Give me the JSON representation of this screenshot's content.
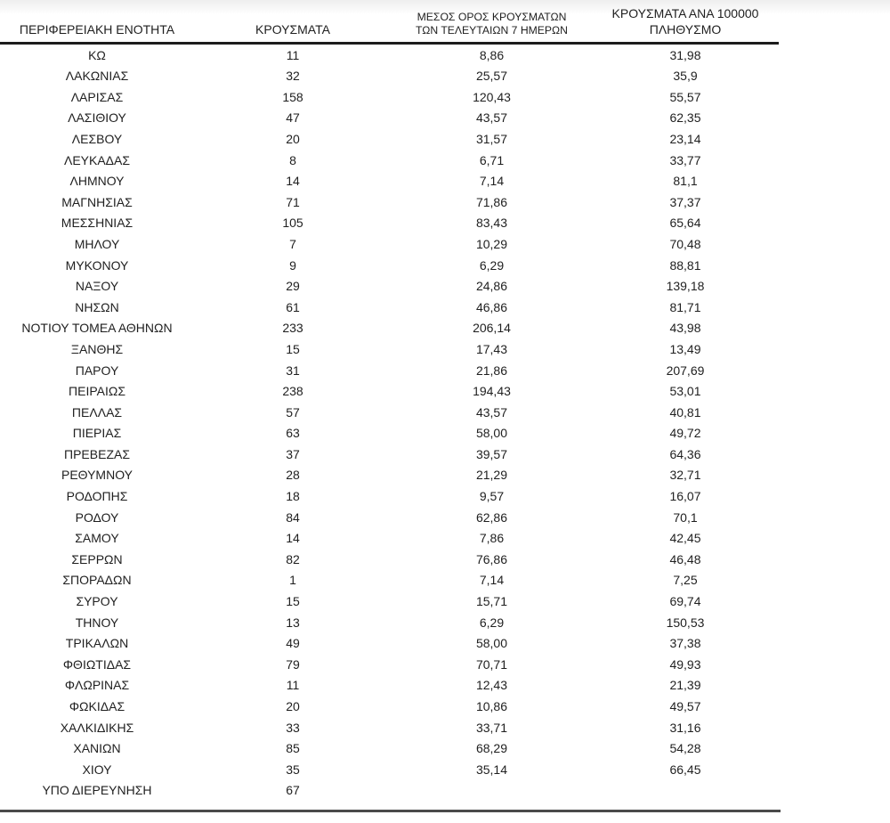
{
  "colors": {
    "text": "#1f1f1f",
    "header_rule": "#1c1c1c",
    "bottom_rule": "#4a4a4a",
    "background": "#ffffff"
  },
  "table": {
    "headers": {
      "region": "ΠΕΡΙΦΕΡΕΙΑΚΗ ΕΝΟΤΗΤΑ",
      "cases": "ΚΡΟΥΣΜΑΤΑ",
      "avg7_line1": "ΜΕΣΟΣ ΟΡΟΣ ΚΡΟΥΣΜΑΤΩΝ",
      "avg7_line2": "ΤΩΝ ΤΕΛΕΥΤΑΙΩΝ 7 ΗΜΕΡΩΝ",
      "per100k_line1": "ΚΡΟΥΣΜΑΤΑ ΑΝΑ 100000",
      "per100k_line2": "ΠΛΗΘΥΣΜΟ"
    },
    "rows": [
      {
        "region": "ΚΩ",
        "cases": "11",
        "avg7": "8,86",
        "per100k": "31,98"
      },
      {
        "region": "ΛΑΚΩΝΙΑΣ",
        "cases": "32",
        "avg7": "25,57",
        "per100k": "35,9"
      },
      {
        "region": "ΛΑΡΙΣΑΣ",
        "cases": "158",
        "avg7": "120,43",
        "per100k": "55,57"
      },
      {
        "region": "ΛΑΣΙΘΙΟΥ",
        "cases": "47",
        "avg7": "43,57",
        "per100k": "62,35"
      },
      {
        "region": "ΛΕΣΒΟΥ",
        "cases": "20",
        "avg7": "31,57",
        "per100k": "23,14"
      },
      {
        "region": "ΛΕΥΚΑΔΑΣ",
        "cases": "8",
        "avg7": "6,71",
        "per100k": "33,77"
      },
      {
        "region": "ΛΗΜΝΟΥ",
        "cases": "14",
        "avg7": "7,14",
        "per100k": "81,1"
      },
      {
        "region": "ΜΑΓΝΗΣΙΑΣ",
        "cases": "71",
        "avg7": "71,86",
        "per100k": "37,37"
      },
      {
        "region": "ΜΕΣΣΗΝΙΑΣ",
        "cases": "105",
        "avg7": "83,43",
        "per100k": "65,64"
      },
      {
        "region": "ΜΗΛΟΥ",
        "cases": "7",
        "avg7": "10,29",
        "per100k": "70,48"
      },
      {
        "region": "ΜΥΚΟΝΟΥ",
        "cases": "9",
        "avg7": "6,29",
        "per100k": "88,81"
      },
      {
        "region": "ΝΑΞΟΥ",
        "cases": "29",
        "avg7": "24,86",
        "per100k": "139,18"
      },
      {
        "region": "ΝΗΣΩΝ",
        "cases": "61",
        "avg7": "46,86",
        "per100k": "81,71"
      },
      {
        "region": "ΝΟΤΙΟΥ ΤΟΜΕΑ ΑΘΗΝΩΝ",
        "cases": "233",
        "avg7": "206,14",
        "per100k": "43,98"
      },
      {
        "region": "ΞΑΝΘΗΣ",
        "cases": "15",
        "avg7": "17,43",
        "per100k": "13,49"
      },
      {
        "region": "ΠΑΡΟΥ",
        "cases": "31",
        "avg7": "21,86",
        "per100k": "207,69"
      },
      {
        "region": "ΠΕΙΡΑΙΩΣ",
        "cases": "238",
        "avg7": "194,43",
        "per100k": "53,01"
      },
      {
        "region": "ΠΕΛΛΑΣ",
        "cases": "57",
        "avg7": "43,57",
        "per100k": "40,81"
      },
      {
        "region": "ΠΙΕΡΙΑΣ",
        "cases": "63",
        "avg7": "58,00",
        "per100k": "49,72"
      },
      {
        "region": "ΠΡΕΒΕΖΑΣ",
        "cases": "37",
        "avg7": "39,57",
        "per100k": "64,36"
      },
      {
        "region": "ΡΕΘΥΜΝΟΥ",
        "cases": "28",
        "avg7": "21,29",
        "per100k": "32,71"
      },
      {
        "region": "ΡΟΔΟΠΗΣ",
        "cases": "18",
        "avg7": "9,57",
        "per100k": "16,07"
      },
      {
        "region": "ΡΟΔΟΥ",
        "cases": "84",
        "avg7": "62,86",
        "per100k": "70,1"
      },
      {
        "region": "ΣΑΜΟΥ",
        "cases": "14",
        "avg7": "7,86",
        "per100k": "42,45"
      },
      {
        "region": "ΣΕΡΡΩΝ",
        "cases": "82",
        "avg7": "76,86",
        "per100k": "46,48"
      },
      {
        "region": "ΣΠΟΡΑΔΩΝ",
        "cases": "1",
        "avg7": "7,14",
        "per100k": "7,25"
      },
      {
        "region": "ΣΥΡΟΥ",
        "cases": "15",
        "avg7": "15,71",
        "per100k": "69,74"
      },
      {
        "region": "ΤΗΝΟΥ",
        "cases": "13",
        "avg7": "6,29",
        "per100k": "150,53"
      },
      {
        "region": "ΤΡΙΚΑΛΩΝ",
        "cases": "49",
        "avg7": "58,00",
        "per100k": "37,38"
      },
      {
        "region": "ΦΘΙΩΤΙΔΑΣ",
        "cases": "79",
        "avg7": "70,71",
        "per100k": "49,93"
      },
      {
        "region": "ΦΛΩΡΙΝΑΣ",
        "cases": "11",
        "avg7": "12,43",
        "per100k": "21,39"
      },
      {
        "region": "ΦΩΚΙΔΑΣ",
        "cases": "20",
        "avg7": "10,86",
        "per100k": "49,57"
      },
      {
        "region": "ΧΑΛΚΙΔΙΚΗΣ",
        "cases": "33",
        "avg7": "33,71",
        "per100k": "31,16"
      },
      {
        "region": "ΧΑΝΙΩΝ",
        "cases": "85",
        "avg7": "68,29",
        "per100k": "54,28"
      },
      {
        "region": "ΧΙΟΥ",
        "cases": "35",
        "avg7": "35,14",
        "per100k": "66,45"
      },
      {
        "region": "ΥΠΟ ΔΙΕΡΕΥΝΗΣΗ",
        "cases": "67",
        "avg7": "",
        "per100k": ""
      }
    ]
  }
}
